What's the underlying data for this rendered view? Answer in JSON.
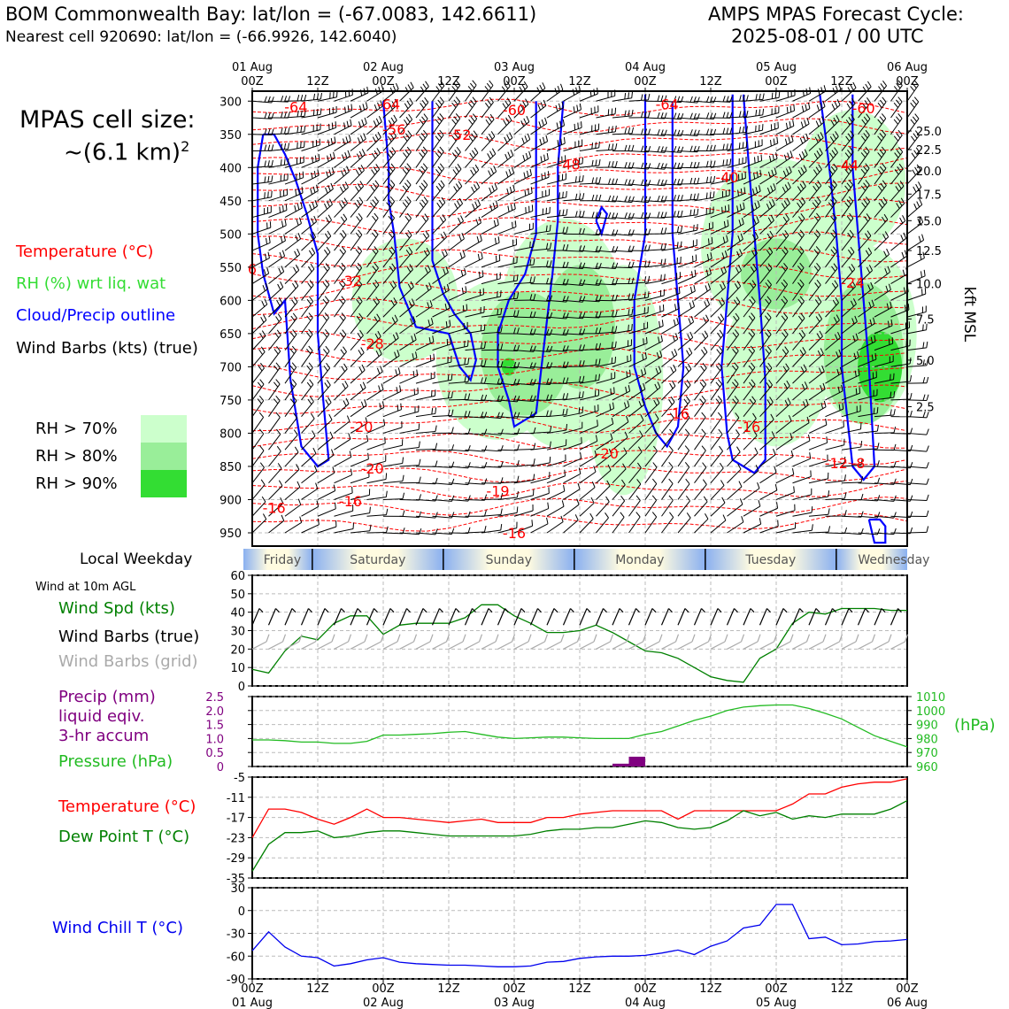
{
  "header": {
    "location_line": "BOM Commonwealth Bay: lat/lon = (-67.0083, 142.6611)",
    "cell_line": "Nearest cell 920690: lat/lon = (-66.9926, 142.6040)",
    "model_line": "AMPS MPAS Forecast Cycle:",
    "cycle_line": "2025-08-01 / 00 UTC"
  },
  "side": {
    "cell_size_label": "MPAS cell size:",
    "cell_size_value": "~(6.1 km)",
    "cell_size_exp": "2",
    "legend": [
      {
        "label": "Temperature (°C)",
        "color": "#ff0000"
      },
      {
        "label": "RH (%) wrt liq. wat",
        "color": "#33dd33"
      },
      {
        "label": "Cloud/Precip outline",
        "color": "#0000ff"
      },
      {
        "label": "Wind Barbs (kts) (true)",
        "color": "#000000"
      }
    ],
    "rh_boxes": [
      {
        "label": "RH > 70%",
        "color": "#ccffcc"
      },
      {
        "label": "RH > 80%",
        "color": "#99ee99"
      },
      {
        "label": "RH > 90%",
        "color": "#33dd33"
      }
    ]
  },
  "colors": {
    "temperature": "#ff0000",
    "rh": "#33dd33",
    "cloud": "#0000ff",
    "wind_speed": "#008000",
    "wind_grid": "#aaaaaa",
    "precip": "#800080",
    "pressure": "#22bb22",
    "dewpoint": "#008000",
    "windchill": "#0000ee"
  },
  "time_axis": {
    "top_labels": [
      {
        "h": 0,
        "l1": "01 Aug",
        "l2": "00Z"
      },
      {
        "h": 12,
        "l1": "",
        "l2": "12Z"
      },
      {
        "h": 24,
        "l1": "02 Aug",
        "l2": "00Z"
      },
      {
        "h": 36,
        "l1": "",
        "l2": "12Z"
      },
      {
        "h": 48,
        "l1": "03 Aug",
        "l2": "00Z"
      },
      {
        "h": 60,
        "l1": "",
        "l2": "12Z"
      },
      {
        "h": 72,
        "l1": "04 Aug",
        "l2": "00Z"
      },
      {
        "h": 84,
        "l1": "",
        "l2": "12Z"
      },
      {
        "h": 96,
        "l1": "05 Aug",
        "l2": "00Z"
      },
      {
        "h": 108,
        "l1": "",
        "l2": "12Z"
      },
      {
        "h": 120,
        "l1": "06 Aug",
        "l2": "00Z"
      }
    ],
    "weekday_title": "Local Weekday",
    "weekdays": [
      "Friday",
      "Saturday",
      "Sunday",
      "Monday",
      "Tuesday",
      "Wednesday"
    ]
  },
  "cross_section": {
    "pressure_ticks": [
      300,
      350,
      400,
      450,
      500,
      550,
      600,
      650,
      700,
      750,
      800,
      850,
      900,
      950
    ],
    "height_ticks": [
      {
        "p": 345,
        "label": "25.0"
      },
      {
        "p": 373,
        "label": "22.5"
      },
      {
        "p": 405,
        "label": "20.0"
      },
      {
        "p": 440,
        "label": "17.5"
      },
      {
        "p": 480,
        "label": "15.0"
      },
      {
        "p": 525,
        "label": "12.5"
      },
      {
        "p": 575,
        "label": "10.0"
      },
      {
        "p": 628,
        "label": "7.5"
      },
      {
        "p": 690,
        "label": "5.0"
      },
      {
        "p": 760,
        "label": "2.5"
      }
    ],
    "height_axis_label": "kft MSL",
    "temp_labels": [
      {
        "h": 8,
        "p": 308,
        "t": "-64"
      },
      {
        "h": 25,
        "p": 304,
        "t": "-64"
      },
      {
        "h": 48,
        "p": 313,
        "t": "-60"
      },
      {
        "h": 76,
        "p": 304,
        "t": "-64"
      },
      {
        "h": 112,
        "p": 310,
        "t": "-60"
      },
      {
        "h": 26,
        "p": 342,
        "t": "-56"
      },
      {
        "h": 38,
        "p": 350,
        "t": "-52"
      },
      {
        "h": 58,
        "p": 395,
        "t": "-48"
      },
      {
        "h": 87,
        "p": 414,
        "t": "-40"
      },
      {
        "h": 109,
        "p": 396,
        "t": "-44"
      },
      {
        "h": 0,
        "p": 552,
        "t": "6"
      },
      {
        "h": 18,
        "p": 570,
        "t": "-32"
      },
      {
        "h": 22,
        "p": 665,
        "t": "-28"
      },
      {
        "h": 110,
        "p": 573,
        "t": "-24"
      },
      {
        "h": 20,
        "p": 790,
        "t": "-20"
      },
      {
        "h": 22,
        "p": 853,
        "t": "-20"
      },
      {
        "h": 45,
        "p": 887,
        "t": "-19"
      },
      {
        "h": 65,
        "p": 830,
        "t": "-20"
      },
      {
        "h": 78,
        "p": 770,
        "t": "-16"
      },
      {
        "h": 91,
        "p": 790,
        "t": "-16"
      },
      {
        "h": 4,
        "p": 912,
        "t": "-16"
      },
      {
        "h": 18,
        "p": 902,
        "t": "-16"
      },
      {
        "h": 48,
        "p": 950,
        "t": "-16"
      },
      {
        "h": 107,
        "p": 845,
        "t": "-12"
      },
      {
        "h": 111,
        "p": 845,
        "t": "-8"
      }
    ]
  },
  "surface_wind": {
    "title": "Wind at 10m AGL",
    "labels": [
      "Wind Spd (kts)",
      "Wind Barbs (true)",
      "Wind Barbs (grid)"
    ],
    "y_ticks": [
      0,
      10,
      20,
      30,
      40,
      50,
      60
    ]
  },
  "precip_pressure": {
    "labels": [
      "Precip (mm)",
      "liquid eqiv.",
      "3-hr accum",
      "Pressure (hPa)"
    ],
    "precip_ticks": [
      "0",
      "0.5",
      "1.0",
      "1.5",
      "2.0",
      "2.5"
    ],
    "pressure_ticks": [
      960,
      970,
      980,
      990,
      1000,
      1010
    ],
    "pressure_unit": "(hPa)"
  },
  "temperature_panel": {
    "labels": [
      "Temperature (°C)",
      "Dew Point T (°C)"
    ],
    "y_ticks": [
      -35,
      -29,
      -23,
      -17,
      -11,
      -5
    ]
  },
  "windchill_panel": {
    "label": "Wind Chill T (°C)",
    "y_ticks": [
      -90,
      -60,
      -30,
      0,
      30
    ]
  },
  "chart_data": {
    "type": "line",
    "x_unit": "forecast hour from 2025-08-01 00 UTC",
    "x": [
      0,
      3,
      6,
      9,
      12,
      15,
      18,
      21,
      24,
      27,
      30,
      33,
      36,
      39,
      42,
      45,
      48,
      51,
      54,
      57,
      60,
      63,
      66,
      69,
      72,
      75,
      78,
      81,
      84,
      87,
      90,
      93,
      96,
      99,
      102,
      105,
      108,
      111,
      114,
      117,
      120
    ],
    "xlim": [
      0,
      120
    ],
    "series": [
      {
        "name": "Wind Spd (kts)",
        "ylim": [
          0,
          60
        ],
        "values": [
          9,
          7,
          19,
          27,
          25,
          34,
          38,
          38,
          28,
          33,
          34,
          34,
          34,
          37,
          44,
          44,
          38,
          34,
          29,
          29,
          30,
          33,
          29,
          24,
          19,
          18,
          15,
          10,
          5,
          3,
          2,
          15,
          20,
          34,
          40,
          39,
          42,
          42,
          42,
          41,
          41
        ]
      },
      {
        "name": "Pressure (hPa)",
        "ylim": [
          960,
          1010
        ],
        "values": [
          979,
          979,
          978.5,
          977.5,
          977.5,
          976.5,
          976.5,
          978,
          982.5,
          982.5,
          983,
          983.5,
          984.5,
          985,
          983,
          981,
          980,
          980.5,
          981,
          981,
          980.5,
          980,
          980,
          980,
          983,
          985,
          989,
          993,
          996,
          1000,
          1002.5,
          1003.5,
          1004,
          1004,
          1001.5,
          998,
          994,
          988,
          982,
          978,
          974
        ]
      },
      {
        "name": "Precip (mm)",
        "ylim": [
          0,
          2.5
        ],
        "values": [
          0,
          0,
          0,
          0,
          0,
          0,
          0,
          0,
          0,
          0,
          0,
          0,
          0,
          0,
          0,
          0,
          0,
          0,
          0,
          0,
          0,
          0,
          0,
          0.1,
          0.35,
          0,
          0,
          0,
          0,
          0,
          0,
          0,
          0,
          0,
          0,
          0,
          0,
          0,
          0,
          0,
          0
        ]
      },
      {
        "name": "Temperature (°C)",
        "ylim": [
          -35,
          -5
        ],
        "values": [
          -23,
          -14.5,
          -14.5,
          -15.5,
          -17.5,
          -19,
          -17,
          -14.5,
          -17,
          -17,
          -17.5,
          -18,
          -18.5,
          -18,
          -17.5,
          -18.5,
          -18.5,
          -18.5,
          -17,
          -17,
          -16,
          -15.5,
          -15,
          -15,
          -15,
          -15,
          -17.5,
          -15,
          -15,
          -15,
          -15,
          -15,
          -15,
          -13,
          -10,
          -10,
          -8,
          -7,
          -6.5,
          -6.5,
          -5.5
        ]
      },
      {
        "name": "Dew Point T (°C)",
        "ylim": [
          -35,
          -5
        ],
        "values": [
          -33,
          -25,
          -21.5,
          -21.5,
          -21,
          -23,
          -22.5,
          -21.5,
          -21,
          -21,
          -21.5,
          -22,
          -22.5,
          -22.5,
          -22.5,
          -22.5,
          -22.5,
          -22,
          -21,
          -20.5,
          -20.5,
          -20,
          -20,
          -19,
          -18,
          -18.5,
          -20,
          -20.5,
          -20,
          -18,
          -15,
          -16.5,
          -15.5,
          -17.5,
          -16.5,
          -17,
          -16,
          -16,
          -16,
          -14.5,
          -12
        ]
      },
      {
        "name": "Wind Chill T (°C)",
        "ylim": [
          -90,
          30
        ],
        "values": [
          -53,
          -28,
          -48,
          -60,
          -62,
          -73,
          -70,
          -65,
          -62,
          -68,
          -70,
          -71,
          -72,
          -72,
          -73,
          -74,
          -74,
          -73,
          -68,
          -67,
          -63,
          -61,
          -60,
          -60,
          -59,
          -56,
          -52,
          -58,
          -47,
          -40,
          -23,
          -19,
          8,
          8,
          -37,
          -35,
          -45,
          -44,
          -41,
          -40,
          -38
        ]
      }
    ]
  }
}
